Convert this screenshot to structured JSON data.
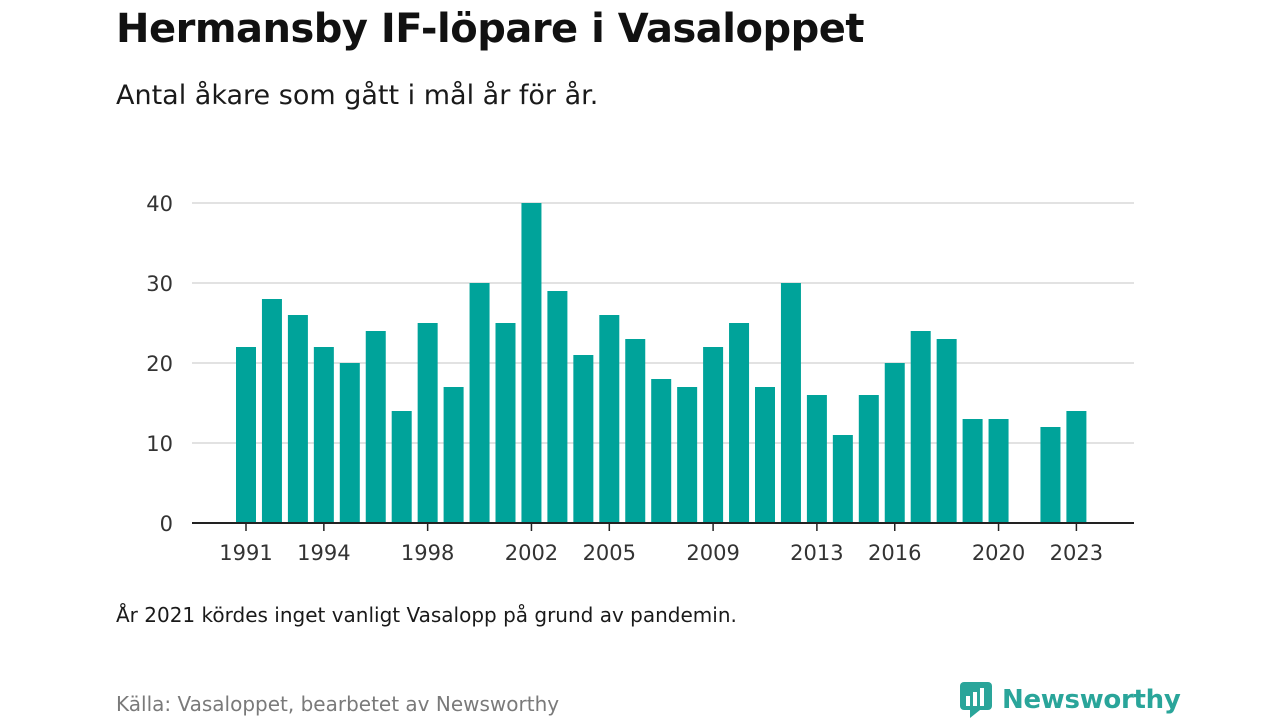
{
  "header": {
    "title": "Hermansby IF-löpare i Vasaloppet",
    "subtitle": "Antal åkare som gått i mål år för år."
  },
  "footer": {
    "note": "År 2021 kördes inget vanligt Vasalopp på grund av pandemin.",
    "source": "Källa: Vasaloppet, bearbetet av Newsworthy",
    "brand": "Newsworthy"
  },
  "colors": {
    "bar": "#00a39a",
    "grid": "#d9d9d9",
    "axis": "#222222",
    "brand": "#2aa59a"
  },
  "icons": {
    "logo": "newsworthy-logo-icon"
  },
  "chart_data": {
    "type": "bar",
    "title": "Hermansby IF-löpare i Vasaloppet",
    "subtitle": "Antal åkare som gått i mål år för år.",
    "xlabel": "",
    "ylabel": "",
    "ylim": [
      0,
      40
    ],
    "yticks": [
      0,
      10,
      20,
      30,
      40
    ],
    "grid": true,
    "legend": "none",
    "categories": [
      1991,
      1992,
      1993,
      1994,
      1995,
      1996,
      1997,
      1998,
      1999,
      2000,
      2001,
      2002,
      2003,
      2004,
      2005,
      2006,
      2007,
      2008,
      2009,
      2010,
      2011,
      2012,
      2013,
      2014,
      2015,
      2016,
      2017,
      2018,
      2019,
      2020,
      2021,
      2022,
      2023
    ],
    "xtick_labels": [
      1991,
      1994,
      1998,
      2002,
      2005,
      2009,
      2013,
      2016,
      2020,
      2023
    ],
    "values": [
      22,
      28,
      26,
      22,
      20,
      24,
      14,
      25,
      17,
      30,
      25,
      40,
      29,
      21,
      26,
      23,
      18,
      17,
      22,
      25,
      17,
      30,
      16,
      11,
      16,
      20,
      24,
      23,
      13,
      13,
      0,
      12,
      14
    ]
  }
}
